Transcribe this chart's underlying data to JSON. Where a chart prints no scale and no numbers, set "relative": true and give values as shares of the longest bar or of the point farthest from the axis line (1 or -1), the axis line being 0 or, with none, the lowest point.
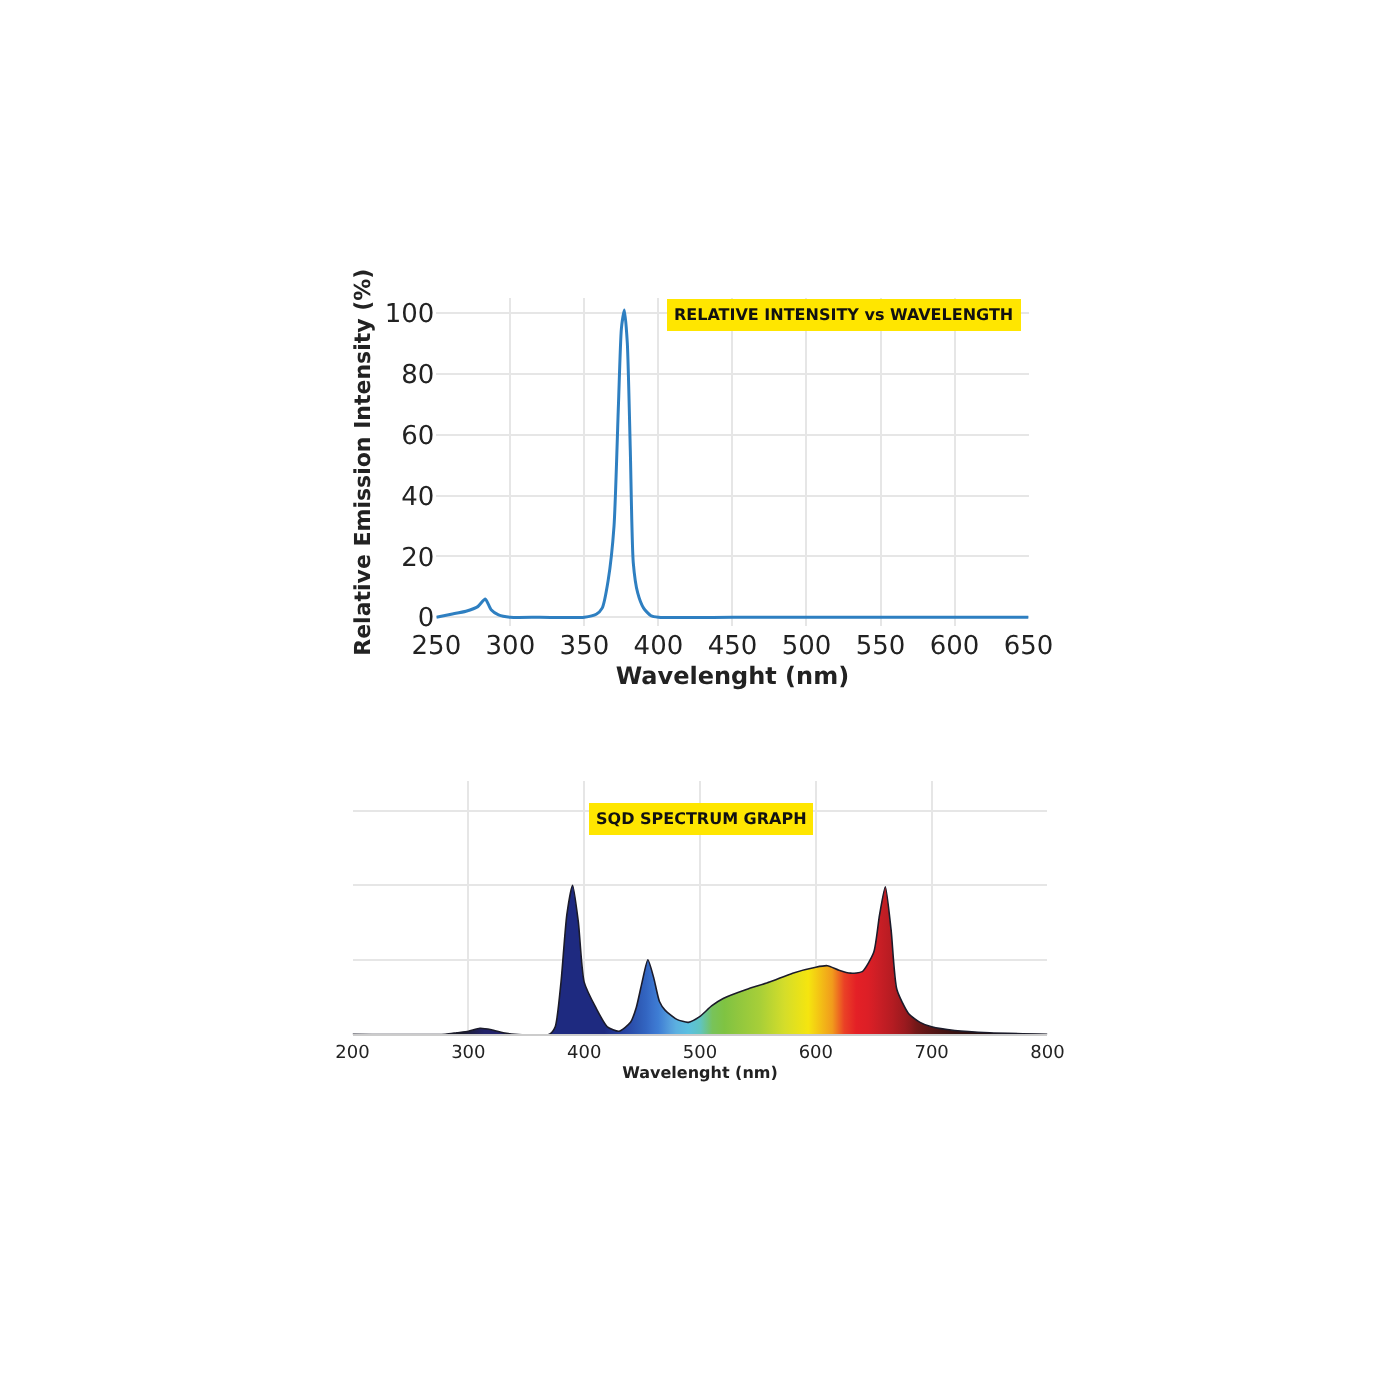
{
  "chart_data": [
    {
      "type": "line",
      "title": "RELATIVE INTENSITY vs WAVELENGTH",
      "xlabel": "Wavelenght (nm)",
      "ylabel": "Relative Emission Intensity (%)",
      "xlim": [
        250,
        650
      ],
      "xticks": [
        250,
        300,
        350,
        400,
        450,
        500,
        550,
        600,
        650
      ],
      "ylim": [
        -3,
        105
      ],
      "yticks": [
        0,
        20,
        40,
        60,
        80,
        100
      ],
      "grid": true,
      "series": [
        {
          "color": "#2e7fc1",
          "x": [
            250,
            260,
            270,
            278,
            283,
            287,
            292,
            300,
            320,
            350,
            358,
            362,
            366,
            370,
            373,
            375,
            377,
            379,
            381,
            383,
            386,
            390,
            395,
            400,
            450,
            500,
            550,
            600,
            650
          ],
          "values": [
            0,
            1,
            2,
            3.5,
            6,
            2.5,
            0.8,
            0,
            0,
            0,
            1,
            3,
            12,
            30,
            70,
            95,
            101,
            90,
            55,
            18,
            8,
            3,
            0.5,
            0,
            0,
            0,
            0,
            0,
            0
          ]
        }
      ]
    },
    {
      "type": "area",
      "title": "SQD SPECTRUM GRAPH",
      "xlabel": "Wavelenght (nm)",
      "relative": true,
      "xlim": [
        200,
        800
      ],
      "xticks": [
        200,
        300,
        400,
        500,
        600,
        700,
        800
      ],
      "grid": true,
      "series": [
        {
          "color": "#1b1b2a",
          "x": [
            200,
            280,
            290,
            300,
            310,
            320,
            330,
            340,
            370,
            375,
            380,
            385,
            390,
            395,
            400,
            410,
            420,
            430,
            440,
            445,
            450,
            455,
            460,
            465,
            470,
            480,
            490,
            500,
            510,
            520,
            540,
            560,
            580,
            600,
            610,
            620,
            630,
            640,
            650,
            655,
            660,
            665,
            670,
            680,
            690,
            700,
            720,
            750,
            800
          ],
          "values": [
            0,
            0,
            0.01,
            0.02,
            0.04,
            0.03,
            0.01,
            0,
            0,
            0.05,
            0.35,
            0.8,
            1.0,
            0.75,
            0.35,
            0.18,
            0.05,
            0.02,
            0.08,
            0.18,
            0.35,
            0.5,
            0.38,
            0.22,
            0.16,
            0.1,
            0.08,
            0.12,
            0.19,
            0.24,
            0.3,
            0.35,
            0.41,
            0.45,
            0.46,
            0.43,
            0.41,
            0.42,
            0.55,
            0.8,
            0.99,
            0.7,
            0.3,
            0.14,
            0.08,
            0.05,
            0.025,
            0.01,
            0
          ],
          "colors": [
            "#1b1b2a",
            "#1b1b2a",
            "#1b1b2a",
            "#1f1f4a",
            "#22226a",
            "#22226a",
            "#22226a",
            "#22226a",
            "#1e2a80",
            "#1e2a80",
            "#1e2a80",
            "#1e2a80",
            "#1e2a80",
            "#1e2a80",
            "#1e2a80",
            "#1e2a80",
            "#233a95",
            "#2a4aa8",
            "#2f5db8",
            "#3366c2",
            "#3a72cc",
            "#3e7dd4",
            "#4a8ed8",
            "#56a0dd",
            "#5cb0e0",
            "#5bc0e0",
            "#60c4c0",
            "#78c35a",
            "#7fc342",
            "#8ec63f",
            "#a8cf38",
            "#d4dd2a",
            "#f5e50f",
            "#f19b1c",
            "#ea4126",
            "#e42026",
            "#dc1f26",
            "#c81e25",
            "#b51c22",
            "#a81b20",
            "#9c1a1f",
            "#8b191c",
            "#741818",
            "#5c1616",
            "#4a1414",
            "#3a1212",
            "#2a1010",
            "#1e0e0e",
            "#1a0c0c"
          ]
        }
      ]
    }
  ]
}
